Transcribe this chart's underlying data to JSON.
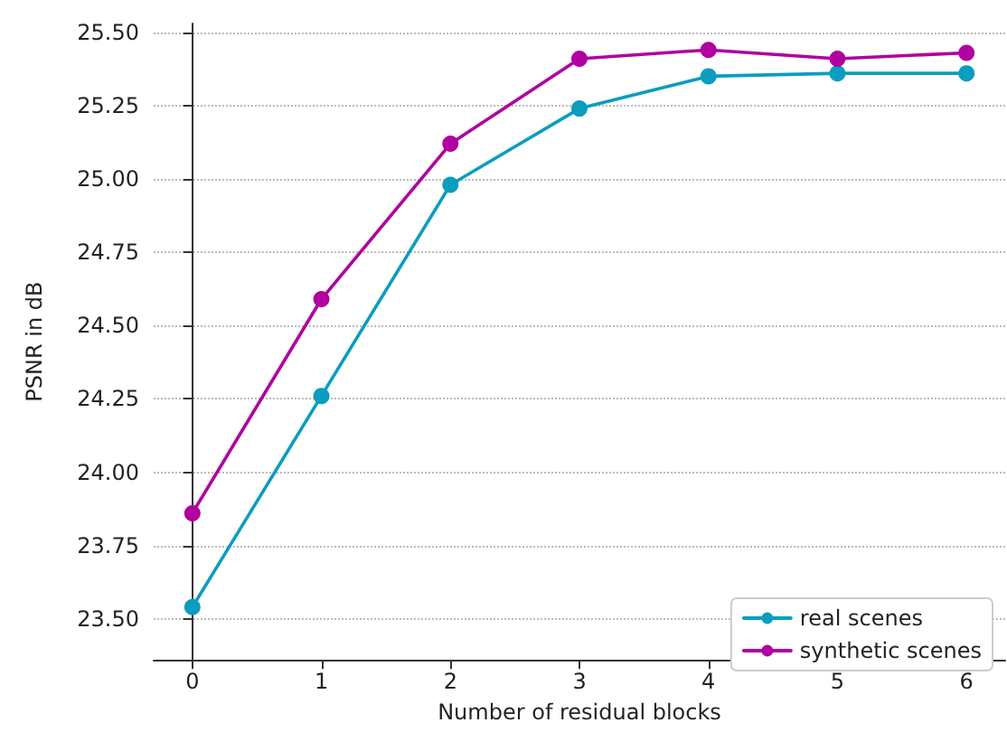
{
  "chart_data": {
    "type": "line",
    "xlabel": "Number of residual blocks",
    "ylabel": "PSNR in dB",
    "x": [
      0,
      1,
      2,
      3,
      4,
      5,
      6
    ],
    "series": [
      {
        "name": "real scenes",
        "color": "#0a9dbf",
        "values": [
          23.54,
          24.26,
          24.98,
          25.24,
          25.35,
          25.36,
          25.36
        ]
      },
      {
        "name": "synthetic scenes",
        "color": "#b0009f",
        "values": [
          23.86,
          24.59,
          25.12,
          25.41,
          25.44,
          25.41,
          25.43
        ]
      }
    ],
    "xlim": [
      -0.3,
      6.3
    ],
    "xticks": [
      0,
      1,
      2,
      3,
      4,
      5,
      6
    ],
    "ylim": [
      23.36,
      25.53
    ],
    "yticks": [
      {
        "value": 23.5,
        "label": "23.50"
      },
      {
        "value": 23.75,
        "label": "23.75"
      },
      {
        "value": 24,
        "label": "24.00"
      },
      {
        "value": 24.25,
        "label": "24.25"
      },
      {
        "value": 24.5,
        "label": "24.50"
      },
      {
        "value": 24.75,
        "label": "24.75"
      },
      {
        "value": 25,
        "label": "25.00"
      },
      {
        "value": 25.25,
        "label": "25.25"
      },
      {
        "value": 25.5,
        "label": "25.50"
      }
    ],
    "grid": "y",
    "legend": "bottom right",
    "marker": "circle",
    "line_style": "solid"
  }
}
